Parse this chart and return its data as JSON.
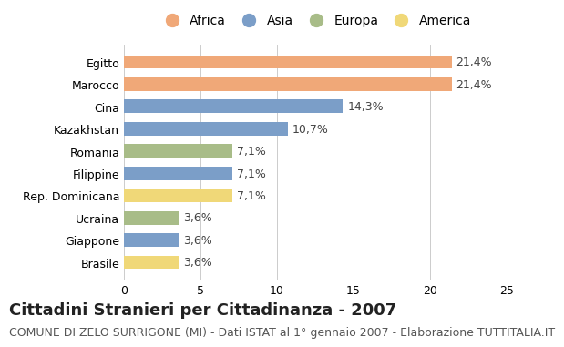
{
  "categories": [
    "Brasile",
    "Giappone",
    "Ucraina",
    "Rep. Dominicana",
    "Filippine",
    "Romania",
    "Kazakhstan",
    "Cina",
    "Marocco",
    "Egitto"
  ],
  "values": [
    3.6,
    3.6,
    3.6,
    7.1,
    7.1,
    7.1,
    10.7,
    14.3,
    21.4,
    21.4
  ],
  "continents": [
    "America",
    "Asia",
    "Europa",
    "America",
    "Asia",
    "Europa",
    "Asia",
    "Asia",
    "Africa",
    "Africa"
  ],
  "labels": [
    "3,6%",
    "3,6%",
    "3,6%",
    "7,1%",
    "7,1%",
    "7,1%",
    "10,7%",
    "14,3%",
    "21,4%",
    "21,4%"
  ],
  "colors": {
    "Africa": "#F0A878",
    "Asia": "#7B9EC8",
    "Europa": "#A8BC88",
    "America": "#F0D878"
  },
  "legend_order": [
    "Africa",
    "Asia",
    "Europa",
    "America"
  ],
  "xlim": [
    0,
    25
  ],
  "xticks": [
    0,
    5,
    10,
    15,
    20,
    25
  ],
  "title": "Cittadini Stranieri per Cittadinanza - 2007",
  "subtitle": "COMUNE DI ZELO SURRIGONE (MI) - Dati ISTAT al 1° gennaio 2007 - Elaborazione TUTTITALIA.IT",
  "background_color": "#ffffff",
  "title_fontsize": 13,
  "subtitle_fontsize": 9
}
